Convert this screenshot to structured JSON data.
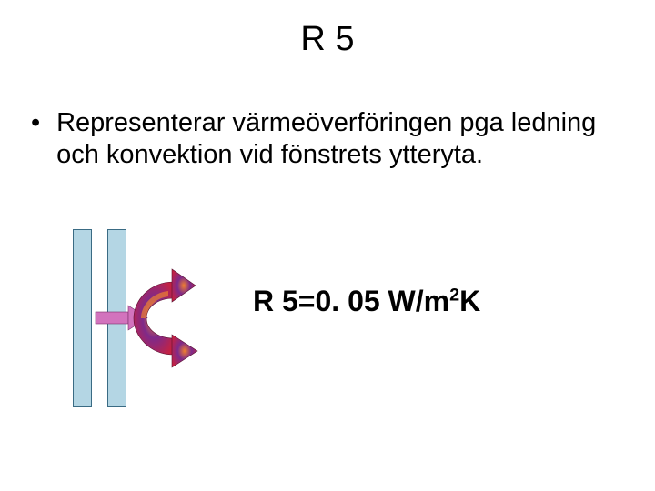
{
  "title": "R 5",
  "bullet": {
    "marker": "•",
    "text": "Representerar värmeöverföringen pga ledning och konvektion vid fönstrets ytteryta."
  },
  "formula": {
    "prefix": "R 5=0. 05 W/m",
    "exp": "2",
    "suffix": "K"
  },
  "panes": {
    "fill": "#b4d6e4",
    "border": "#3a6b84",
    "width": 21,
    "height": 196,
    "gap": 38
  },
  "arrows": {
    "small_fill": "#d273bd",
    "small_stroke": "#7a2f6a",
    "curve_top": "#b11f3a",
    "curve_mid": "#7e2a8a",
    "curve_bot": "#c32244",
    "highlight": "#f08030",
    "shadow": "#5a1030"
  }
}
